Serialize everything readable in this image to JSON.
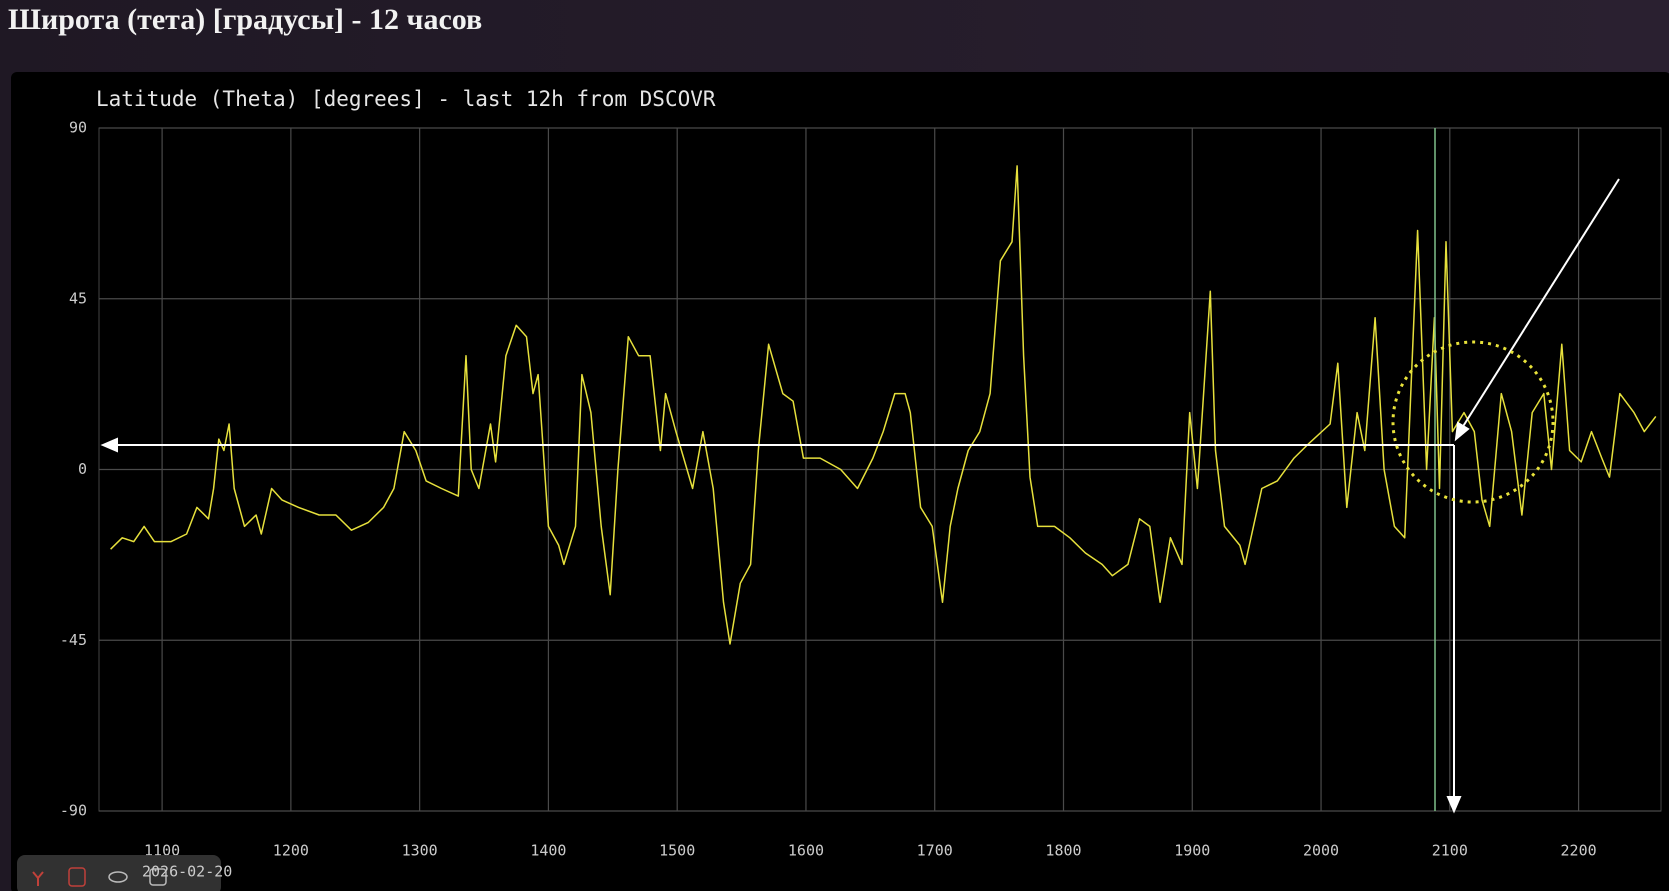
{
  "page_title": "Широта (тета) [градусы] - 12 часов",
  "chart_data": {
    "type": "line",
    "title": "Latitude (Theta) [degrees] - last 12h from DSCOVR",
    "date_label": "2026-02-20",
    "color": "#e6e03c",
    "grid": true,
    "xlim": [
      10.51,
      22.64
    ],
    "xticks": [
      {
        "value": 11,
        "label": "1100"
      },
      {
        "value": 12,
        "label": "1200"
      },
      {
        "value": 13,
        "label": "1300"
      },
      {
        "value": 14,
        "label": "1400"
      },
      {
        "value": 15,
        "label": "1500"
      },
      {
        "value": 16,
        "label": "1600"
      },
      {
        "value": 17,
        "label": "1700"
      },
      {
        "value": 18,
        "label": "1800"
      },
      {
        "value": 19,
        "label": "1900"
      },
      {
        "value": 20,
        "label": "2000"
      },
      {
        "value": 21,
        "label": "2100"
      },
      {
        "value": 22,
        "label": "2200"
      }
    ],
    "ylim": [
      -90,
      90
    ],
    "yticks": [
      90,
      45,
      0,
      -45,
      -90
    ],
    "x": [
      10.6,
      10.69,
      10.78,
      10.86,
      10.94,
      11.07,
      11.19,
      11.27,
      11.36,
      11.4,
      11.44,
      11.48,
      11.52,
      11.56,
      11.64,
      11.73,
      11.77,
      11.85,
      11.93,
      12.06,
      12.22,
      12.35,
      12.47,
      12.6,
      12.72,
      12.8,
      12.88,
      12.97,
      13.05,
      13.17,
      13.3,
      13.36,
      13.4,
      13.46,
      13.55,
      13.59,
      13.67,
      13.75,
      13.83,
      13.88,
      13.92,
      13.96,
      14.0,
      14.08,
      14.12,
      14.21,
      14.26,
      14.33,
      14.41,
      14.48,
      14.54,
      14.62,
      14.7,
      14.79,
      14.87,
      14.91,
      14.99,
      15.12,
      15.2,
      15.28,
      15.36,
      15.41,
      15.49,
      15.57,
      15.63,
      15.71,
      15.82,
      15.9,
      15.98,
      16.11,
      16.27,
      16.4,
      16.52,
      16.6,
      16.69,
      16.77,
      16.81,
      16.89,
      16.98,
      17.06,
      17.12,
      17.18,
      17.26,
      17.35,
      17.43,
      17.51,
      17.6,
      17.64,
      17.69,
      17.74,
      17.8,
      17.93,
      18.05,
      18.17,
      18.3,
      18.38,
      18.5,
      18.59,
      18.67,
      18.75,
      18.83,
      18.92,
      18.98,
      19.04,
      19.14,
      19.18,
      19.25,
      19.37,
      19.41,
      19.54,
      19.66,
      19.79,
      19.91,
      20.07,
      20.13,
      20.2,
      20.28,
      20.34,
      20.42,
      20.49,
      20.57,
      20.65,
      20.75,
      20.82,
      20.88,
      20.92,
      20.97,
      21.02,
      21.11,
      21.19,
      21.25,
      21.31,
      21.4,
      21.48,
      21.56,
      21.64,
      21.73,
      21.79,
      21.87,
      21.93,
      22.02,
      22.1,
      22.18,
      22.24,
      22.32,
      22.43,
      22.51,
      22.6
    ],
    "values": [
      -21,
      -18,
      -19,
      -15,
      -19,
      -19,
      -17,
      -10,
      -13,
      -5,
      8,
      5,
      12,
      -5,
      -15,
      -12,
      -17,
      -5,
      -8,
      -10,
      -12,
      -12,
      -16,
      -14,
      -10,
      -5,
      10,
      5,
      -3,
      -5,
      -7,
      30,
      0,
      -5,
      12,
      2,
      30,
      38,
      35,
      20,
      25,
      5,
      -15,
      -20,
      -25,
      -15,
      25,
      15,
      -15,
      -33,
      0,
      35,
      30,
      30,
      5,
      20,
      10,
      -5,
      10,
      -5,
      -35,
      -46,
      -30,
      -25,
      5,
      33,
      20,
      18,
      3,
      3,
      0,
      -5,
      3,
      10,
      20,
      20,
      15,
      -10,
      -15,
      -35,
      -15,
      -5,
      5,
      10,
      20,
      55,
      60,
      80,
      30,
      -2,
      -15,
      -15,
      -18,
      -22,
      -25,
      -28,
      -25,
      -13,
      -15,
      -35,
      -18,
      -25,
      15,
      -5,
      47,
      5,
      -15,
      -20,
      -25,
      -5,
      -3,
      3,
      7,
      12,
      28,
      -10,
      15,
      5,
      40,
      0,
      -15,
      -18,
      63,
      0,
      40,
      -5,
      60,
      10,
      15,
      10,
      -8,
      -15,
      20,
      10,
      -12,
      15,
      20,
      0,
      33,
      5,
      2,
      10,
      3,
      -2,
      20,
      15,
      10,
      14
    ]
  }
}
